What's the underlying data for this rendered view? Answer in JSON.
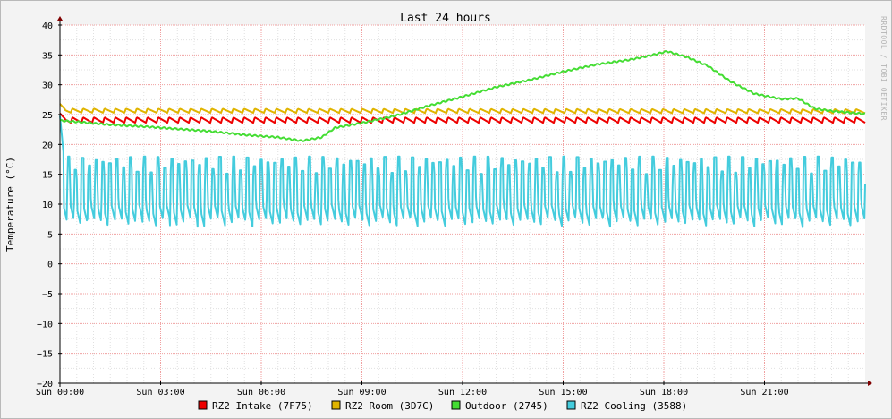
{
  "chart_data": {
    "type": "line",
    "title": "Last 24 hours",
    "ylabel": "Temperature (°C)",
    "xlabel": "",
    "watermark": "RRDTOOL / TOBI OETIKER",
    "ylim": [
      -20,
      40
    ],
    "y_ticks": [
      40,
      35,
      30,
      25,
      20,
      15,
      10,
      5,
      0,
      -5,
      -10,
      -15,
      -20
    ],
    "y_tick_labels": [
      "40",
      "35",
      "30",
      "25",
      "20",
      "15",
      "10",
      "5",
      "0",
      "−5",
      "−10",
      "−15",
      "−20"
    ],
    "x_range_hours": [
      0,
      24
    ],
    "x_ticks": [
      0,
      3,
      6,
      9,
      12,
      15,
      18,
      21
    ],
    "x_tick_labels": [
      "Sun 00:00",
      "Sun 03:00",
      "Sun 06:00",
      "Sun 09:00",
      "Sun 12:00",
      "Sun 15:00",
      "Sun 18:00",
      "Sun 21:00"
    ],
    "grid": true,
    "legend_position": "bottom",
    "colors": {
      "background": "#f3f3f3",
      "canvas": "#ffffff",
      "major_grid": "#f0a0a0",
      "minor_grid": "#e0e0e0",
      "axis": "#000000",
      "arrow": "#800000"
    },
    "series": [
      {
        "name": "RZ2 Intake (7F75)",
        "color": "#ee0000",
        "pattern": "sawtooth",
        "base": [
          [
            0,
            24.0
          ],
          [
            24,
            24.0
          ]
        ],
        "period_h": 0.32,
        "amplitude": 0.9,
        "start_spike": 25.2
      },
      {
        "name": "RZ2 Room (3D7C)",
        "color": "#e0b400",
        "pattern": "sawtooth",
        "base": [
          [
            0,
            25.6
          ],
          [
            24,
            25.5
          ]
        ],
        "period_h": 0.32,
        "amplitude": 0.7,
        "start_spike": 26.8
      },
      {
        "name": "Outdoor (2745)",
        "color": "#44dd33",
        "pattern": "smooth",
        "points": [
          [
            0,
            24.0
          ],
          [
            0.5,
            23.8
          ],
          [
            1.5,
            23.3
          ],
          [
            2.5,
            23.0
          ],
          [
            3.5,
            22.6
          ],
          [
            4.5,
            22.2
          ],
          [
            5.5,
            21.6
          ],
          [
            6.5,
            21.2
          ],
          [
            7.2,
            20.6
          ],
          [
            7.8,
            21.2
          ],
          [
            8.2,
            22.8
          ],
          [
            9,
            23.6
          ],
          [
            10,
            24.8
          ],
          [
            11,
            26.5
          ],
          [
            12,
            28.0
          ],
          [
            13,
            29.6
          ],
          [
            14,
            30.8
          ],
          [
            15,
            32.2
          ],
          [
            16,
            33.4
          ],
          [
            17,
            34.2
          ],
          [
            17.6,
            34.9
          ],
          [
            18.1,
            35.6
          ],
          [
            18.7,
            34.6
          ],
          [
            19.3,
            33.2
          ],
          [
            20,
            30.5
          ],
          [
            20.7,
            28.5
          ],
          [
            21.5,
            27.6
          ],
          [
            22,
            27.7
          ],
          [
            22.5,
            26.0
          ],
          [
            23,
            25.6
          ],
          [
            24,
            25.1
          ]
        ]
      },
      {
        "name": "RZ2 Cooling (3588)",
        "color": "#44ccdd",
        "pattern": "cycling",
        "period_h": 0.205,
        "low": 6.0,
        "high": 17.5,
        "start_peak": 24.8
      }
    ]
  }
}
